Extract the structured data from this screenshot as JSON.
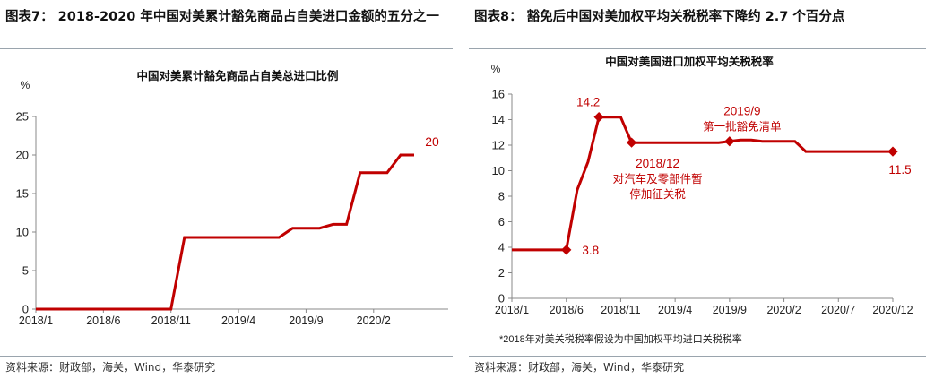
{
  "left": {
    "figure_title": "图表7：  2018-2020 年中国对美累计豁免商品占自美进口金额的五分之一",
    "source": "资料来源：财政部，海关，Wind，华泰研究"
  },
  "right": {
    "figure_title": "图表8：  豁免后中国对美加权平均关税税率下降约 2.7 个百分点",
    "footnote": "*2018年对美关税税率假设为中国加权平均进口关税税率",
    "source": "资料来源：财政部，海关，Wind，华泰研究"
  },
  "colors": {
    "series": "#c00000",
    "axis": "#888888",
    "rule": "#9aa4ad"
  },
  "chart_data": [
    {
      "type": "line",
      "title": "中国对美累计豁免商品占自美总进口比例",
      "ylabel": "%",
      "ylim": [
        0,
        25
      ],
      "yticks": [
        "0",
        "5",
        "10",
        "15",
        "20",
        "25"
      ],
      "xticks": [
        "2018/1",
        "2018/6",
        "2018/11",
        "2019/4",
        "2019/9",
        "2020/2"
      ],
      "grid": false,
      "x": [
        "2018/1",
        "2018/6",
        "2018/11",
        "2018/12",
        "2019/1",
        "2019/2",
        "2019/3",
        "2019/4",
        "2019/5",
        "2019/6",
        "2019/7",
        "2019/8",
        "2019/9",
        "2019/10",
        "2019/11",
        "2019/12",
        "2020/1",
        "2020/2",
        "2020/3",
        "2020/4",
        "2020/5"
      ],
      "values": [
        0,
        0,
        0,
        9.3,
        9.3,
        9.3,
        9.3,
        9.3,
        9.3,
        9.3,
        9.3,
        10.5,
        10.5,
        10.5,
        11,
        11,
        17.7,
        17.7,
        17.7,
        20,
        20
      ],
      "annotations": [
        {
          "text": "20",
          "x": "2020/5",
          "y": 20
        }
      ]
    },
    {
      "type": "line",
      "title": "中国对美国进口加权平均关税税率",
      "ylabel": "%",
      "ylim": [
        0,
        16
      ],
      "yticks": [
        "0",
        "2",
        "4",
        "6",
        "8",
        "10",
        "12",
        "14",
        "16"
      ],
      "xticks": [
        "2018/1",
        "2018/6",
        "2018/11",
        "2019/4",
        "2019/9",
        "2020/2",
        "2020/7",
        "2020/12"
      ],
      "grid": false,
      "x": [
        "2018/1",
        "2018/2",
        "2018/3",
        "2018/4",
        "2018/5",
        "2018/6",
        "2018/7",
        "2018/8",
        "2018/9",
        "2018/10",
        "2018/11",
        "2018/12",
        "2019/1",
        "2019/2",
        "2019/3",
        "2019/4",
        "2019/5",
        "2019/6",
        "2019/7",
        "2019/8",
        "2019/9",
        "2019/10",
        "2019/11",
        "2019/12",
        "2020/1",
        "2020/2",
        "2020/3",
        "2020/4",
        "2020/5",
        "2020/6",
        "2020/7",
        "2020/8",
        "2020/9",
        "2020/10",
        "2020/11",
        "2020/12"
      ],
      "values": [
        3.8,
        3.8,
        3.8,
        3.8,
        3.8,
        3.8,
        8.5,
        10.7,
        14.2,
        14.2,
        14.2,
        12.2,
        12.2,
        12.2,
        12.2,
        12.2,
        12.2,
        12.2,
        12.2,
        12.2,
        12.3,
        12.4,
        12.4,
        12.3,
        12.3,
        12.3,
        12.3,
        11.5,
        11.5,
        11.5,
        11.5,
        11.5,
        11.5,
        11.5,
        11.5,
        11.5
      ],
      "markers": [
        {
          "x": "2018/6",
          "y": 3.8,
          "label": "3.8"
        },
        {
          "x": "2018/9",
          "y": 14.2,
          "label": "14.2"
        },
        {
          "x": "2018/12",
          "y": 12.2,
          "label": "2018/12\n对汽车及零部件暂\n停加征关税"
        },
        {
          "x": "2019/9",
          "y": 12.3,
          "label": "2019/9\n第一批豁免清单"
        },
        {
          "x": "2020/12",
          "y": 11.5,
          "label": "11.5"
        }
      ]
    }
  ]
}
